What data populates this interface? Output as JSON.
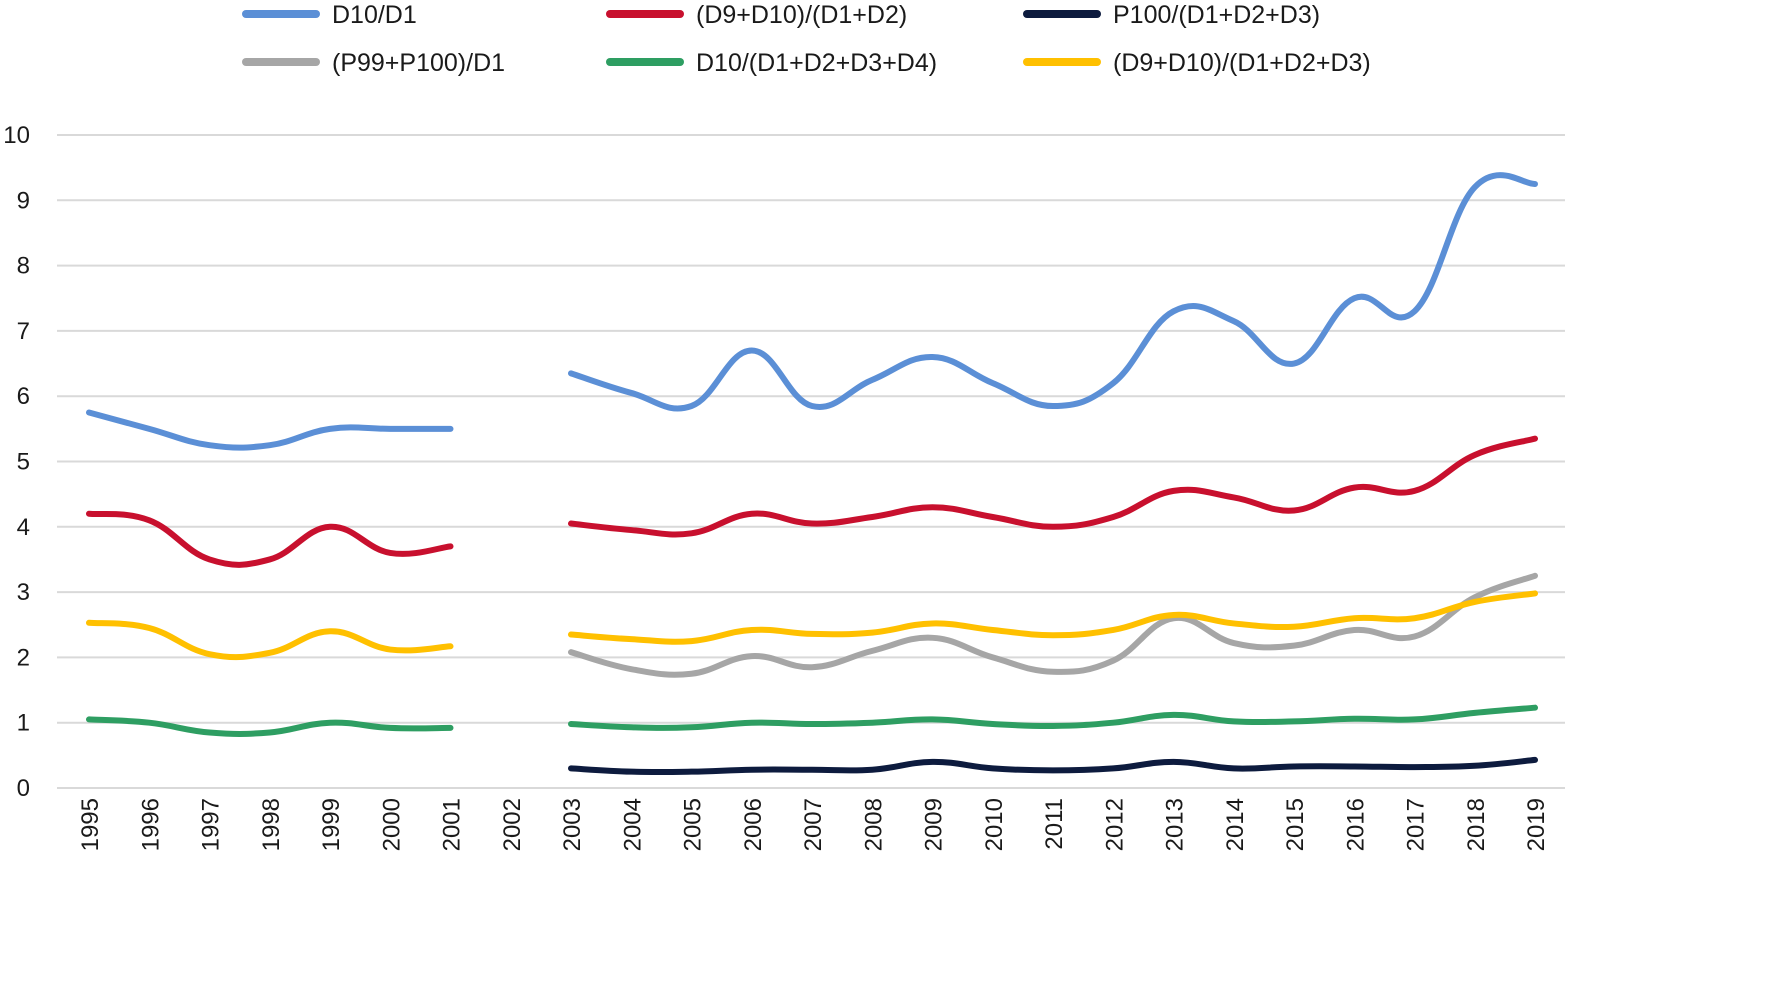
{
  "chart_data": {
    "type": "line",
    "title": "",
    "xlabel": "",
    "ylabel": "",
    "ylim": [
      0,
      10
    ],
    "yticks": [
      "0",
      "1",
      "2",
      "3",
      "4",
      "5",
      "6",
      "7",
      "8",
      "9",
      "10"
    ],
    "grid": true,
    "legend_position": "top",
    "x": [
      "1995",
      "1996",
      "1997",
      "1998",
      "1999",
      "2000",
      "2001",
      "2002",
      "2003",
      "2004",
      "2005",
      "2006",
      "2007",
      "2008",
      "2009",
      "2010",
      "2011",
      "2012",
      "2013",
      "2014",
      "2015",
      "2016",
      "2017",
      "2018",
      "2019"
    ],
    "series": [
      {
        "name": "D10/D1",
        "color": "#5b8fd6",
        "values": [
          5.75,
          5.5,
          5.25,
          5.25,
          5.5,
          5.5,
          5.5,
          null,
          6.35,
          6.05,
          5.85,
          6.7,
          5.85,
          6.25,
          6.6,
          6.2,
          5.85,
          6.2,
          7.3,
          7.15,
          6.5,
          7.5,
          7.3,
          9.2,
          9.25
        ]
      },
      {
        "name": "(D9+D10)/(D1+D2)",
        "color": "#c8102e",
        "values": [
          4.2,
          4.1,
          3.5,
          3.5,
          4.0,
          3.6,
          3.7,
          null,
          4.05,
          3.95,
          3.9,
          4.2,
          4.05,
          4.15,
          4.3,
          4.15,
          4.0,
          4.15,
          4.55,
          4.45,
          4.25,
          4.6,
          4.55,
          5.1,
          5.35
        ]
      },
      {
        "name": "P100/(D1+D2+D3)",
        "color": "#0d1b3e",
        "values": [
          null,
          null,
          null,
          null,
          null,
          null,
          null,
          null,
          0.3,
          0.25,
          0.25,
          0.28,
          0.28,
          0.28,
          0.4,
          0.3,
          0.27,
          0.3,
          0.4,
          0.3,
          0.33,
          0.33,
          0.32,
          0.34,
          0.43
        ]
      },
      {
        "name": "(P99+P100)/D1",
        "color": "#a6a6a6",
        "values": [
          null,
          null,
          null,
          null,
          null,
          null,
          null,
          null,
          2.08,
          1.82,
          1.75,
          2.02,
          1.85,
          2.1,
          2.3,
          2.0,
          1.78,
          1.95,
          2.6,
          2.22,
          2.18,
          2.42,
          2.32,
          2.92,
          3.25
        ]
      },
      {
        "name": "D10/(D1+D2+D3+D4)",
        "color": "#2e9e62",
        "values": [
          1.05,
          1.0,
          0.85,
          0.85,
          1.0,
          0.92,
          0.92,
          null,
          0.98,
          0.93,
          0.93,
          1.0,
          0.98,
          1.0,
          1.05,
          0.98,
          0.95,
          1.0,
          1.12,
          1.02,
          1.02,
          1.06,
          1.05,
          1.15,
          1.23
        ]
      },
      {
        "name": "(D9+D10)/(D1+D2+D3)",
        "color": "#ffc000",
        "values": [
          2.53,
          2.45,
          2.05,
          2.07,
          2.4,
          2.12,
          2.17,
          null,
          2.35,
          2.28,
          2.25,
          2.42,
          2.36,
          2.38,
          2.52,
          2.42,
          2.34,
          2.42,
          2.65,
          2.52,
          2.47,
          2.6,
          2.6,
          2.85,
          2.98
        ]
      }
    ]
  }
}
